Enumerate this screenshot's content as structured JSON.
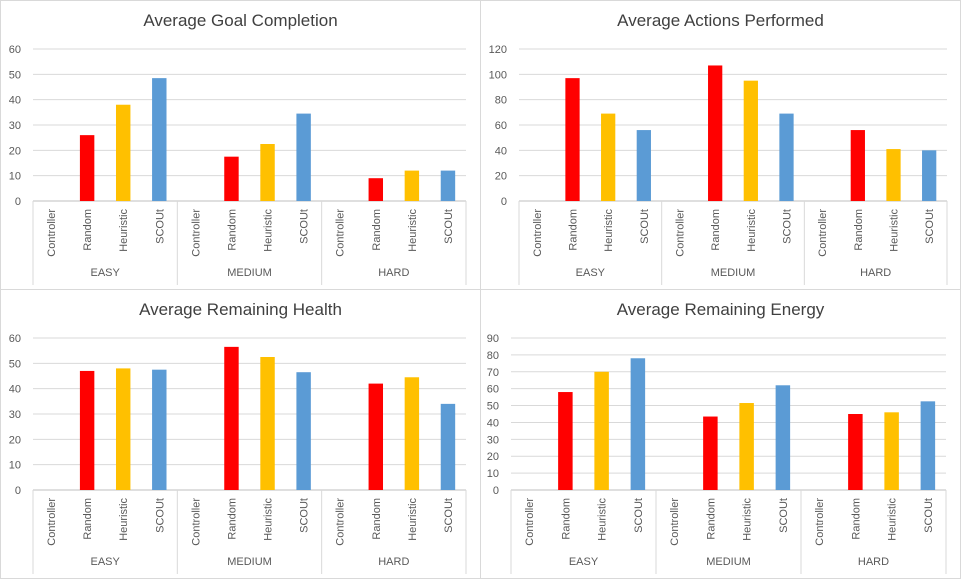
{
  "chart_data": [
    {
      "type": "bar",
      "title": "Average Goal Completion",
      "groups": [
        "EASY",
        "MEDIUM",
        "HARD"
      ],
      "categories": [
        "Controller",
        "Random",
        "Heuristic",
        "SCOUt"
      ],
      "colors": [
        "#a5a5a5",
        "#ff0000",
        "#ffc000",
        "#5b9bd5"
      ],
      "values": [
        [
          0,
          26,
          38,
          48.5
        ],
        [
          0,
          17.5,
          22.5,
          34.5
        ],
        [
          0,
          9,
          12,
          12
        ]
      ],
      "ylim": [
        0,
        60
      ],
      "ytick_step": 10,
      "yticks": [
        "0",
        "10",
        "20",
        "30",
        "40",
        "50",
        "60"
      ],
      "xlabel": "",
      "ylabel": "",
      "grid": true
    },
    {
      "type": "bar",
      "title": "Average Actions Performed",
      "groups": [
        "EASY",
        "MEDIUM",
        "HARD"
      ],
      "categories": [
        "Controller",
        "Random",
        "Heuristic",
        "SCOUt"
      ],
      "colors": [
        "#a5a5a5",
        "#ff0000",
        "#ffc000",
        "#5b9bd5"
      ],
      "values": [
        [
          0,
          97,
          69,
          56
        ],
        [
          0,
          107,
          95,
          69
        ],
        [
          0,
          56,
          41,
          40
        ]
      ],
      "ylim": [
        0,
        120
      ],
      "ytick_step": 20,
      "yticks": [
        "0",
        "20",
        "40",
        "60",
        "80",
        "100",
        "120"
      ],
      "xlabel": "",
      "ylabel": "",
      "grid": true
    },
    {
      "type": "bar",
      "title": "Average Remaining Health",
      "groups": [
        "EASY",
        "MEDIUM",
        "HARD"
      ],
      "categories": [
        "Controller",
        "Random",
        "Heuristic",
        "SCOUt"
      ],
      "colors": [
        "#a5a5a5",
        "#ff0000",
        "#ffc000",
        "#5b9bd5"
      ],
      "values": [
        [
          0,
          47,
          48,
          47.5
        ],
        [
          0,
          56.5,
          52.5,
          46.5
        ],
        [
          0,
          42,
          44.5,
          34
        ]
      ],
      "ylim": [
        0,
        60
      ],
      "ytick_step": 10,
      "yticks": [
        "0",
        "10",
        "20",
        "30",
        "40",
        "50",
        "60"
      ],
      "xlabel": "",
      "ylabel": "",
      "grid": true
    },
    {
      "type": "bar",
      "title": "Average Remaining Energy",
      "groups": [
        "EASY",
        "MEDIUM",
        "HARD"
      ],
      "categories": [
        "Controller",
        "Random",
        "Heuristic",
        "SCOUt"
      ],
      "colors": [
        "#a5a5a5",
        "#ff0000",
        "#ffc000",
        "#5b9bd5"
      ],
      "values": [
        [
          0,
          58,
          70,
          78
        ],
        [
          0,
          43.5,
          51.5,
          62
        ],
        [
          0,
          45,
          46,
          52.5
        ]
      ],
      "ylim": [
        0,
        90
      ],
      "ytick_step": 10,
      "yticks": [
        "0",
        "10",
        "20",
        "30",
        "40",
        "50",
        "60",
        "70",
        "80",
        "90"
      ],
      "xlabel": "",
      "ylabel": "",
      "grid": true
    }
  ]
}
